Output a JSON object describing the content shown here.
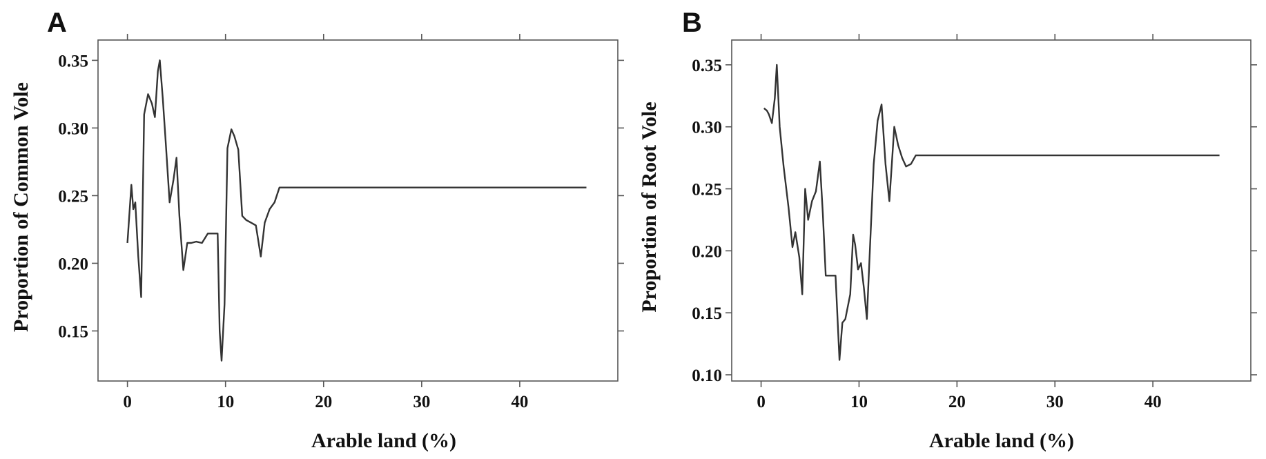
{
  "chart_data": [
    {
      "type": "line",
      "panel_label": "A",
      "xlabel": "Arable land (%)",
      "ylabel": "Proportion of Common Vole",
      "xlim": [
        -3,
        50
      ],
      "ylim": [
        0.113,
        0.365
      ],
      "xticks": [
        0,
        10,
        20,
        30,
        40
      ],
      "xtick_labels": [
        "0",
        "10",
        "20",
        "30",
        "40"
      ],
      "yticks": [
        0.15,
        0.2,
        0.25,
        0.3,
        0.35
      ],
      "ytick_labels": [
        "0.15",
        "0.20",
        "0.25",
        "0.30",
        "0.35"
      ],
      "grid": false,
      "series": [
        {
          "color": "#333333",
          "x": [
            0,
            0.4,
            0.6,
            0.8,
            1.1,
            1.4,
            1.7,
            2.1,
            2.5,
            2.8,
            3.1,
            3.3,
            3.6,
            3.9,
            4.3,
            4.7,
            5.0,
            5.3,
            5.7,
            6.1,
            6.5,
            7.0,
            7.6,
            8.2,
            8.7,
            9.2,
            9.4,
            9.6,
            9.9,
            10.2,
            10.6,
            10.9,
            11.3,
            11.7,
            12.1,
            12.6,
            13.1,
            13.6,
            14.0,
            14.5,
            15.0,
            15.5,
            16.0,
            20,
            30,
            40,
            46.8
          ],
          "values": [
            0.215,
            0.258,
            0.24,
            0.245,
            0.205,
            0.175,
            0.31,
            0.325,
            0.318,
            0.308,
            0.342,
            0.35,
            0.322,
            0.29,
            0.245,
            0.262,
            0.278,
            0.235,
            0.195,
            0.215,
            0.215,
            0.216,
            0.215,
            0.222,
            0.222,
            0.222,
            0.15,
            0.128,
            0.17,
            0.285,
            0.299,
            0.294,
            0.284,
            0.235,
            0.232,
            0.23,
            0.228,
            0.205,
            0.23,
            0.24,
            0.245,
            0.256,
            0.256,
            0.256,
            0.256,
            0.256,
            0.256
          ]
        }
      ]
    },
    {
      "type": "line",
      "panel_label": "B",
      "xlabel": "Arable land (%)",
      "ylabel": "Proportion of Root Vole",
      "xlim": [
        -3,
        50
      ],
      "ylim": [
        0.095,
        0.37
      ],
      "xticks": [
        0,
        10,
        20,
        30,
        40
      ],
      "xtick_labels": [
        "0",
        "10",
        "20",
        "30",
        "40"
      ],
      "yticks": [
        0.1,
        0.15,
        0.2,
        0.25,
        0.3,
        0.35
      ],
      "ytick_labels": [
        "0.10",
        "0.15",
        "0.20",
        "0.25",
        "0.30",
        "0.35"
      ],
      "grid": false,
      "series": [
        {
          "color": "#333333",
          "x": [
            0.3,
            0.6,
            0.8,
            1.1,
            1.4,
            1.6,
            1.9,
            2.3,
            2.8,
            3.2,
            3.5,
            3.9,
            4.2,
            4.5,
            4.8,
            5.2,
            5.6,
            6.0,
            6.3,
            6.6,
            7.0,
            7.6,
            8.0,
            8.3,
            8.6,
            9.1,
            9.4,
            9.6,
            9.9,
            10.2,
            10.5,
            10.8,
            11.1,
            11.5,
            11.9,
            12.3,
            12.7,
            13.1,
            13.6,
            14.0,
            14.4,
            14.8,
            15.3,
            15.8,
            20,
            30,
            40,
            46.8
          ],
          "values": [
            0.315,
            0.313,
            0.31,
            0.303,
            0.323,
            0.35,
            0.3,
            0.268,
            0.235,
            0.203,
            0.215,
            0.195,
            0.165,
            0.25,
            0.225,
            0.24,
            0.248,
            0.272,
            0.23,
            0.18,
            0.18,
            0.18,
            0.112,
            0.142,
            0.145,
            0.165,
            0.213,
            0.205,
            0.185,
            0.19,
            0.17,
            0.145,
            0.2,
            0.27,
            0.305,
            0.318,
            0.27,
            0.24,
            0.3,
            0.285,
            0.275,
            0.268,
            0.27,
            0.277,
            0.277,
            0.277,
            0.277,
            0.277
          ]
        }
      ]
    }
  ]
}
